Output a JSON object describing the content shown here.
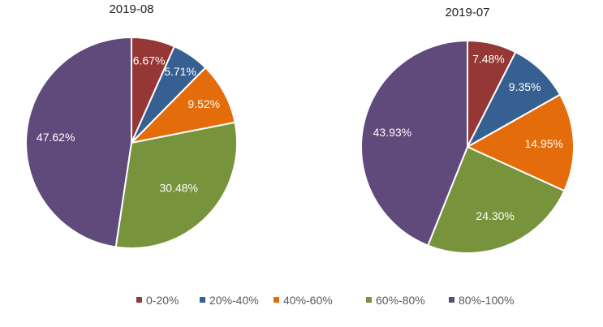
{
  "chart_data": [
    {
      "type": "pie",
      "title": "2019-08",
      "categories": [
        "0-20%",
        "20%-40%",
        "40%-60%",
        "60%-80%",
        "80%-100%"
      ],
      "values": [
        6.67,
        5.71,
        9.52,
        30.48,
        47.62
      ],
      "labels": [
        "6.67%",
        "5.71%",
        "9.52%",
        "30.48%",
        "47.62%"
      ]
    },
    {
      "type": "pie",
      "title": "2019-07",
      "categories": [
        "0-20%",
        "20%-40%",
        "40%-60%",
        "60%-80%",
        "80%-100%"
      ],
      "values": [
        7.48,
        9.35,
        14.95,
        24.3,
        43.93
      ],
      "labels": [
        "7.48%",
        "9.35%",
        "14.95%",
        "24.30%",
        "43.93%"
      ]
    }
  ],
  "legend": {
    "position": "bottom",
    "items": [
      "0-20%",
      "20%-40%",
      "40%-60%",
      "60%-80%",
      "80%-100%"
    ]
  },
  "colors": [
    "#953735",
    "#376092",
    "#e46c0a",
    "#77933c",
    "#604a7b"
  ]
}
